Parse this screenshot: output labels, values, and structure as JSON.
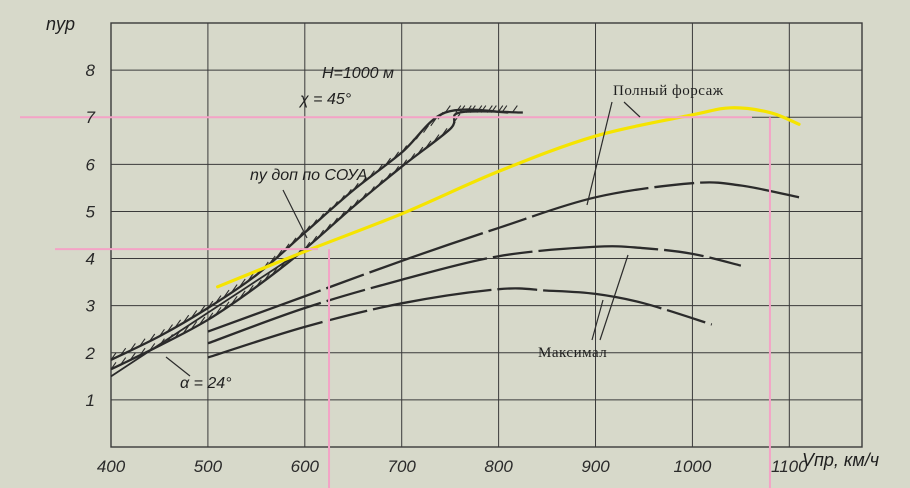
{
  "chart_data": {
    "type": "line",
    "xlabel": "Vпр, км/ч",
    "ylabel": "nур",
    "x_ticks": [
      400,
      500,
      600,
      700,
      800,
      900,
      1000,
      1100
    ],
    "y_ticks": [
      1,
      2,
      3,
      4,
      5,
      6,
      7,
      8
    ],
    "xlim": [
      400,
      1175
    ],
    "ylim": [
      0,
      9
    ],
    "grid": true,
    "annotations": {
      "conditions_h": "Н=1000 м",
      "conditions_chi": "χ = 45°",
      "limit": "nу доп по СОУА",
      "alpha": "α = 24°",
      "afterburner": "Полный форсаж",
      "max_thrust": "Максимал"
    },
    "series": [
      {
        "style": "limit-hatched",
        "x": [
          400,
          450,
          500,
          550,
          600,
          650,
          700,
          745,
          810
        ],
        "y": [
          1.85,
          2.35,
          2.95,
          3.65,
          4.55,
          5.45,
          6.25,
          7.1,
          7.1
        ]
      },
      {
        "style": "limit-hatched",
        "x": [
          400,
          450,
          500,
          550,
          600,
          650,
          700,
          750,
          760,
          825
        ],
        "y": [
          1.65,
          2.15,
          2.7,
          3.4,
          4.2,
          5.1,
          5.95,
          6.75,
          7.1,
          7.1
        ]
      },
      {
        "style": "alpha-line",
        "x": [
          400,
          600
        ],
        "y": [
          1.5,
          4.2
        ]
      },
      {
        "style": "solid",
        "x": [
          500,
          600,
          700,
          800,
          900,
          1000,
          1050,
          1110
        ],
        "y": [
          2.45,
          3.2,
          3.95,
          4.65,
          5.3,
          5.6,
          5.55,
          5.3
        ]
      },
      {
        "style": "solid",
        "x": [
          500,
          600,
          700,
          800,
          900,
          950,
          1000,
          1050
        ],
        "y": [
          2.2,
          2.95,
          3.55,
          4.05,
          4.25,
          4.22,
          4.1,
          3.85
        ]
      },
      {
        "style": "solid",
        "x": [
          500,
          600,
          700,
          800,
          850,
          900,
          950,
          1020
        ],
        "y": [
          1.9,
          2.55,
          3.05,
          3.35,
          3.32,
          3.25,
          3.05,
          2.6
        ]
      },
      {
        "style": "highlight",
        "x": [
          510,
          600,
          700,
          800,
          900,
          1000,
          1040,
          1080,
          1110
        ],
        "y": [
          3.4,
          4.15,
          4.95,
          5.85,
          6.6,
          7.05,
          7.2,
          7.1,
          6.85
        ]
      }
    ],
    "reference_lines": {
      "h": [
        7.0,
        4.2
      ],
      "v": [
        625,
        1080
      ]
    }
  },
  "colors": {
    "background": "#d7d9ca",
    "ink": "#2b2b2b",
    "highlight": "#f5e400",
    "reference": "#f4a3c6",
    "grid": "#3a3a3a"
  }
}
